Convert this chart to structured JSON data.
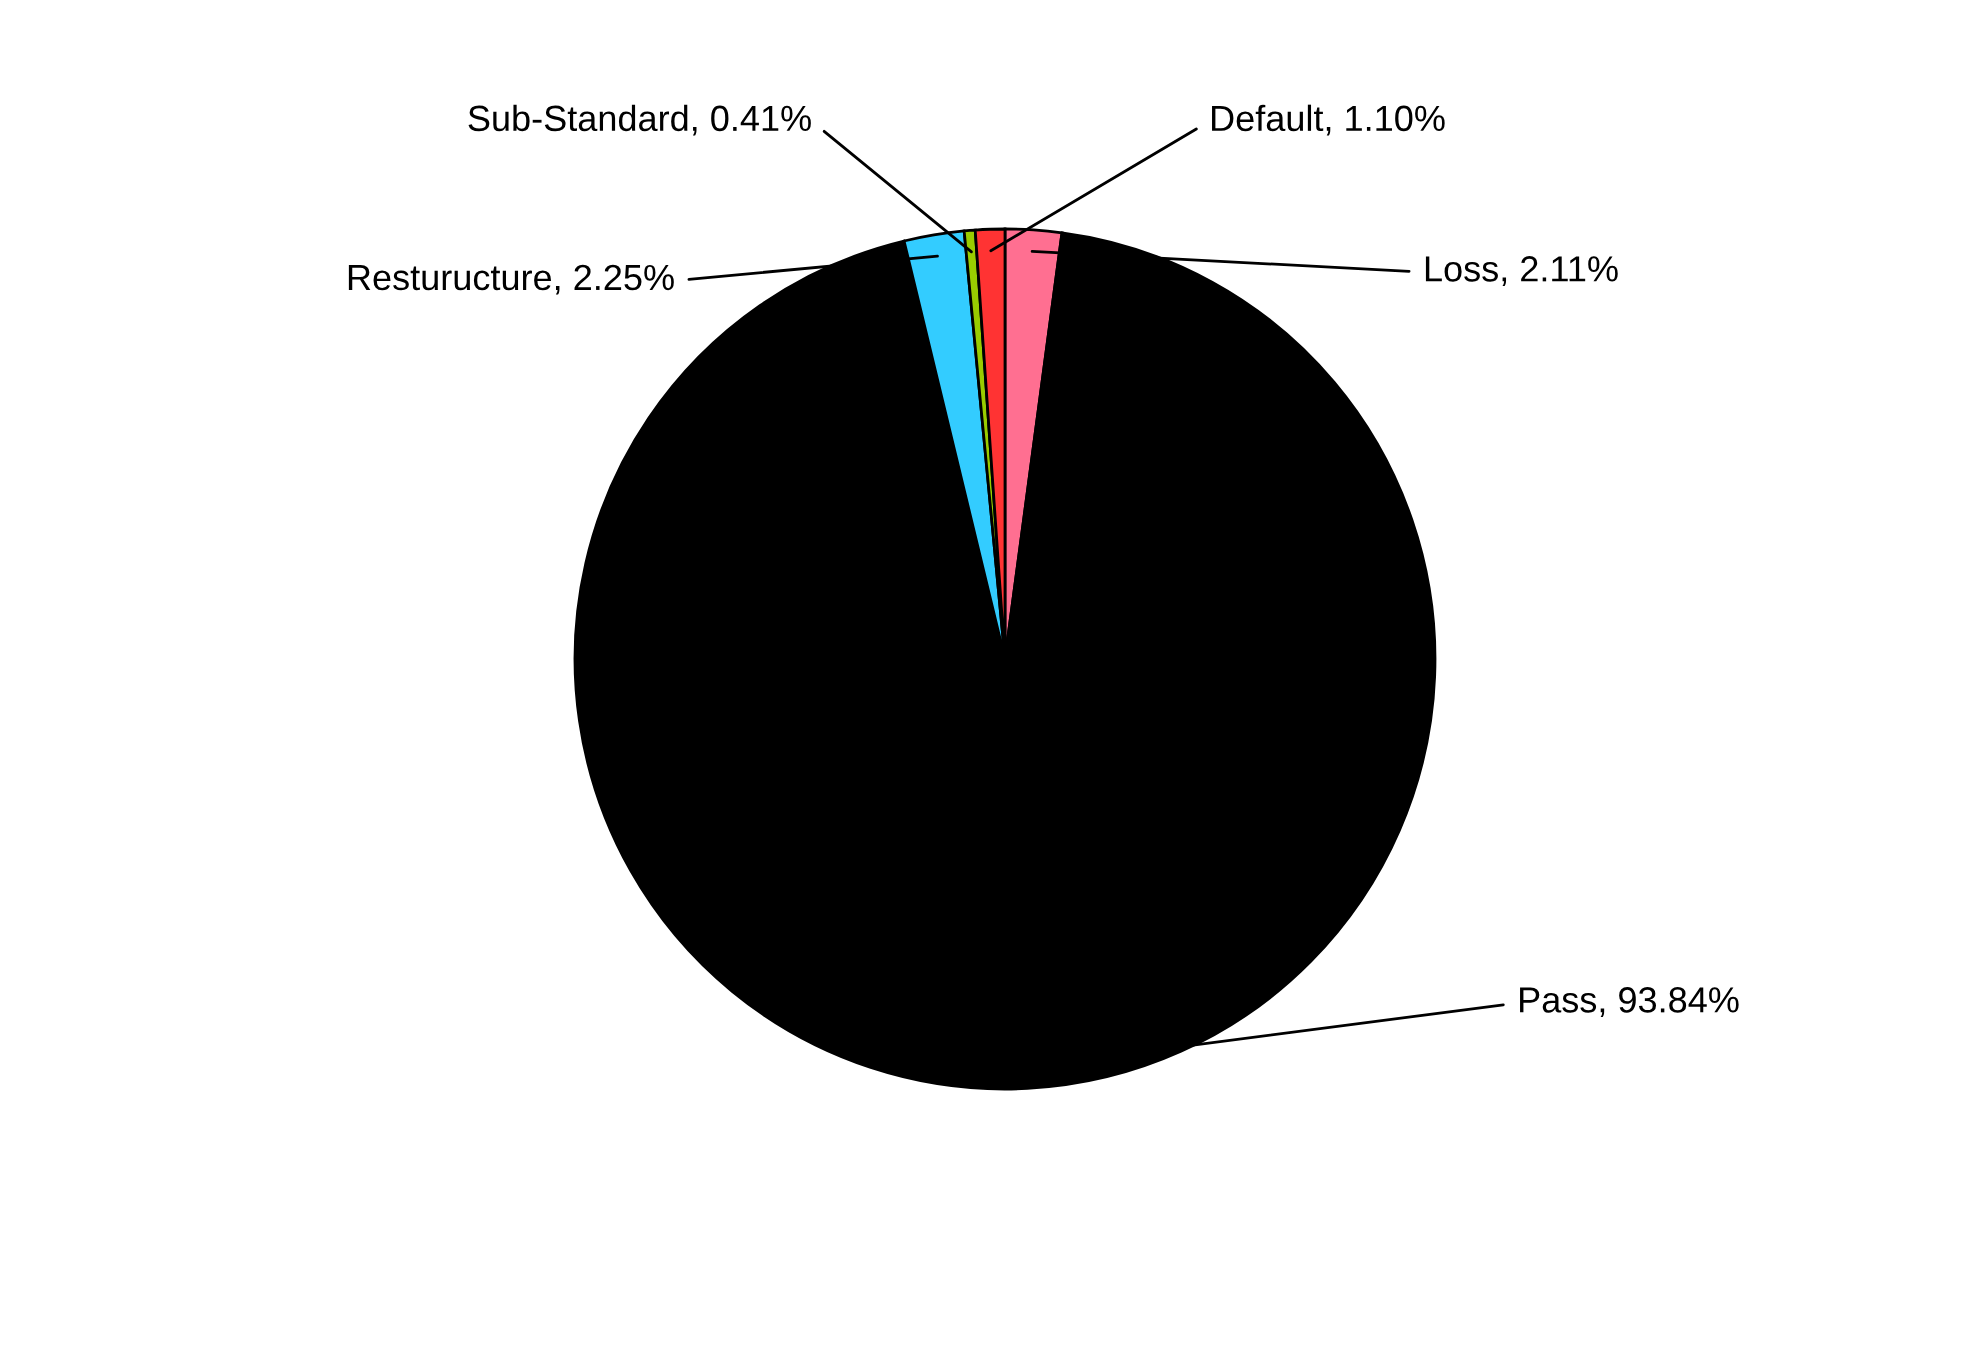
{
  "chart_data": {
    "type": "pie",
    "categories": [
      "Loss",
      "Pass",
      "Resturucture",
      "Sub-Standard",
      "Default"
    ],
    "values": [
      2.11,
      93.84,
      2.25,
      0.41,
      1.1
    ],
    "value_labels": [
      "2.11%",
      "93.84%",
      "2.25%",
      "0.41%",
      "1.10%"
    ],
    "colors": [
      "#ff6f91",
      "#000000",
      "#33ccff",
      "#99cc00",
      "#ff3333"
    ],
    "legend": false
  }
}
